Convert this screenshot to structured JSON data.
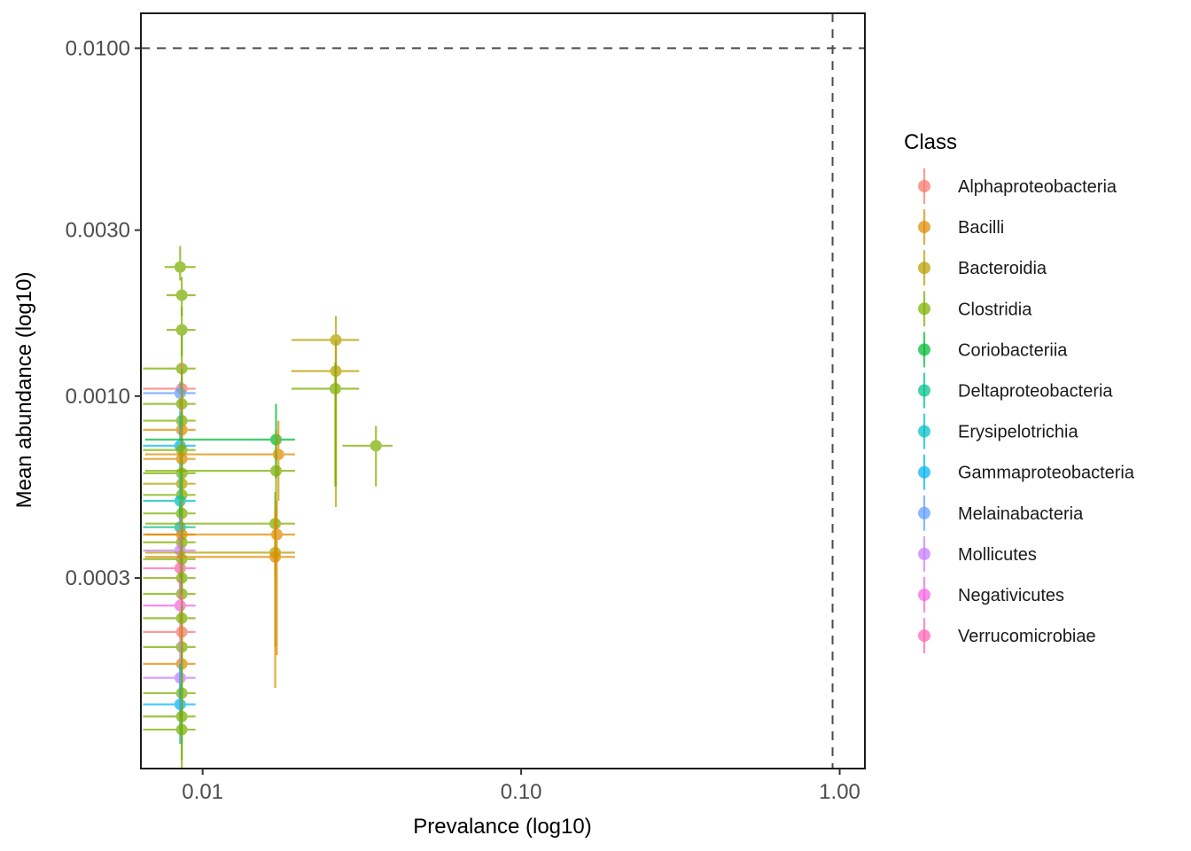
{
  "chart_data": {
    "type": "scatter",
    "xlabel": "Prevalance (log10)",
    "ylabel": "Mean abundance (log10)",
    "x_scale": "log10",
    "y_scale": "log10",
    "xlim": [
      0.0064,
      1.2
    ],
    "ylim": [
      8.5e-05,
      0.0126
    ],
    "x_ticks": [
      0.01,
      0.1,
      1.0
    ],
    "x_tick_labels": [
      "0.01",
      "0.10",
      "1.00"
    ],
    "y_ticks": [
      0.0003,
      0.001,
      0.003,
      0.01
    ],
    "y_tick_labels": [
      "0.0003",
      "0.0010",
      "0.0030",
      "0.0100"
    ],
    "reference_lines": {
      "horizontal_y": 0.01,
      "vertical_x": 0.95,
      "style": "dashed"
    },
    "grid": false,
    "legend": {
      "title": "Class",
      "position": "right",
      "entries": [
        {
          "name": "Alphaproteobacteria",
          "color": "#F8766D"
        },
        {
          "name": "Bacilli",
          "color": "#DE8C00"
        },
        {
          "name": "Bacteroidia",
          "color": "#B79F00"
        },
        {
          "name": "Clostridia",
          "color": "#7CAE00"
        },
        {
          "name": "Coriobacteriia",
          "color": "#00BA38"
        },
        {
          "name": "Deltaproteobacteria",
          "color": "#00C08B"
        },
        {
          "name": "Erysipelotrichia",
          "color": "#00BFC4"
        },
        {
          "name": "Gammaproteobacteria",
          "color": "#00B4F0"
        },
        {
          "name": "Melainabacteria",
          "color": "#619CFF"
        },
        {
          "name": "Mollicutes",
          "color": "#C77CFF"
        },
        {
          "name": "Negativicutes",
          "color": "#F564E3"
        },
        {
          "name": "Verrucomicrobiae",
          "color": "#FF64B0"
        }
      ]
    },
    "points": [
      {
        "class": "Clostridia",
        "x": 0.0085,
        "y": 0.00235,
        "xmin": 0.0076,
        "xmax": 0.0095,
        "ymin": 0.00215,
        "ymax": 0.0027
      },
      {
        "class": "Clostridia",
        "x": 0.0086,
        "y": 0.00195,
        "xmin": 0.0077,
        "xmax": 0.0095,
        "ymin": 0.0017,
        "ymax": 0.0022
      },
      {
        "class": "Clostridia",
        "x": 0.0086,
        "y": 0.00155,
        "xmin": 0.0077,
        "xmax": 0.0095,
        "ymin": 0.0013,
        "ymax": 0.0018
      },
      {
        "class": "Clostridia",
        "x": 0.0086,
        "y": 0.0012,
        "xmin": 0.0065,
        "xmax": 0.0095,
        "ymin": 0.0008,
        "ymax": 0.0015
      },
      {
        "class": "Alphaproteobacteria",
        "x": 0.0086,
        "y": 0.00105,
        "xmin": 0.0065,
        "xmax": 0.0095,
        "ymin": 0.0008,
        "ymax": 0.00125
      },
      {
        "class": "Melainabacteria",
        "x": 0.0085,
        "y": 0.00102,
        "xmin": 0.0065,
        "xmax": 0.0095,
        "ymin": 0.0009,
        "ymax": 0.0011
      },
      {
        "class": "Clostridia",
        "x": 0.0086,
        "y": 0.00095,
        "xmin": 0.0065,
        "xmax": 0.0095,
        "ymin": 0.0007,
        "ymax": 0.0012
      },
      {
        "class": "Clostridia",
        "x": 0.0086,
        "y": 0.00085,
        "xmin": 0.0065,
        "xmax": 0.0095,
        "ymin": 0.0006,
        "ymax": 0.0011
      },
      {
        "class": "Bacilli",
        "x": 0.0086,
        "y": 0.0008,
        "xmin": 0.0065,
        "xmax": 0.0095,
        "ymin": 0.0006,
        "ymax": 0.001
      },
      {
        "class": "Gammaproteobacteria",
        "x": 0.0085,
        "y": 0.00072,
        "xmin": 0.0065,
        "xmax": 0.0095,
        "ymin": 0.0006,
        "ymax": 0.0009
      },
      {
        "class": "Clostridia",
        "x": 0.0086,
        "y": 0.0007,
        "xmin": 0.0065,
        "xmax": 0.0095,
        "ymin": 0.0005,
        "ymax": 0.0009
      },
      {
        "class": "Bacilli",
        "x": 0.0086,
        "y": 0.00066,
        "xmin": 0.0065,
        "xmax": 0.0095,
        "ymin": 0.0005,
        "ymax": 0.0008
      },
      {
        "class": "Clostridia",
        "x": 0.0086,
        "y": 0.0006,
        "xmin": 0.0065,
        "xmax": 0.0095,
        "ymin": 0.00045,
        "ymax": 0.00075
      },
      {
        "class": "Bacteroidia",
        "x": 0.0086,
        "y": 0.00056,
        "xmin": 0.0065,
        "xmax": 0.0095,
        "ymin": 0.0004,
        "ymax": 0.0007
      },
      {
        "class": "Clostridia",
        "x": 0.0086,
        "y": 0.00052,
        "xmin": 0.0065,
        "xmax": 0.0095,
        "ymin": 0.0004,
        "ymax": 0.00065
      },
      {
        "class": "Erysipelotrichia",
        "x": 0.0085,
        "y": 0.0005,
        "xmin": 0.0065,
        "xmax": 0.0095,
        "ymin": 0.0004,
        "ymax": 0.0006
      },
      {
        "class": "Clostridia",
        "x": 0.0086,
        "y": 0.00046,
        "xmin": 0.0065,
        "xmax": 0.0095,
        "ymin": 0.00035,
        "ymax": 0.0006
      },
      {
        "class": "Deltaproteobacteria",
        "x": 0.0085,
        "y": 0.00042,
        "xmin": 0.0065,
        "xmax": 0.0095,
        "ymin": 0.00034,
        "ymax": 0.0005
      },
      {
        "class": "Bacilli",
        "x": 0.0086,
        "y": 0.0004,
        "xmin": 0.0065,
        "xmax": 0.0095,
        "ymin": 0.0003,
        "ymax": 0.0005
      },
      {
        "class": "Clostridia",
        "x": 0.0086,
        "y": 0.00038,
        "xmin": 0.0065,
        "xmax": 0.0095,
        "ymin": 0.0003,
        "ymax": 0.00048
      },
      {
        "class": "Mollicutes",
        "x": 0.0085,
        "y": 0.00036,
        "xmin": 0.0065,
        "xmax": 0.0095,
        "ymin": 0.0003,
        "ymax": 0.00045
      },
      {
        "class": "Clostridia",
        "x": 0.0086,
        "y": 0.00034,
        "xmin": 0.0065,
        "xmax": 0.0095,
        "ymin": 0.00027,
        "ymax": 0.00042
      },
      {
        "class": "Verrucomicrobiae",
        "x": 0.0085,
        "y": 0.00032,
        "xmin": 0.0065,
        "xmax": 0.0095,
        "ymin": 0.00026,
        "ymax": 0.0004
      },
      {
        "class": "Clostridia",
        "x": 0.0086,
        "y": 0.0003,
        "xmin": 0.0065,
        "xmax": 0.0095,
        "ymin": 0.00024,
        "ymax": 0.00038
      },
      {
        "class": "Clostridia",
        "x": 0.0086,
        "y": 0.00027,
        "xmin": 0.0065,
        "xmax": 0.0095,
        "ymin": 0.0002,
        "ymax": 0.00035
      },
      {
        "class": "Negativicutes",
        "x": 0.0085,
        "y": 0.00025,
        "xmin": 0.0065,
        "xmax": 0.0095,
        "ymin": 0.0002,
        "ymax": 0.0003
      },
      {
        "class": "Clostridia",
        "x": 0.0086,
        "y": 0.00023,
        "xmin": 0.0065,
        "xmax": 0.0095,
        "ymin": 0.00017,
        "ymax": 0.0003
      },
      {
        "class": "Alphaproteobacteria",
        "x": 0.0086,
        "y": 0.00021,
        "xmin": 0.0065,
        "xmax": 0.0095,
        "ymin": 0.00016,
        "ymax": 0.00027
      },
      {
        "class": "Clostridia",
        "x": 0.0086,
        "y": 0.00019,
        "xmin": 0.0065,
        "xmax": 0.0095,
        "ymin": 0.00014,
        "ymax": 0.00025
      },
      {
        "class": "Bacilli",
        "x": 0.0086,
        "y": 0.00017,
        "xmin": 0.0065,
        "xmax": 0.0095,
        "ymin": 0.00012,
        "ymax": 0.00022
      },
      {
        "class": "Mollicutes",
        "x": 0.0085,
        "y": 0.000155,
        "xmin": 0.0065,
        "xmax": 0.0095,
        "ymin": 0.00012,
        "ymax": 0.0002
      },
      {
        "class": "Clostridia",
        "x": 0.0086,
        "y": 0.00014,
        "xmin": 0.0065,
        "xmax": 0.0095,
        "ymin": 0.0001,
        "ymax": 0.00019
      },
      {
        "class": "Gammaproteobacteria",
        "x": 0.0085,
        "y": 0.00013,
        "xmin": 0.0065,
        "xmax": 0.0095,
        "ymin": 0.0001,
        "ymax": 0.00017
      },
      {
        "class": "Clostridia",
        "x": 0.0086,
        "y": 0.00012,
        "xmin": 0.0065,
        "xmax": 0.0095,
        "ymin": 9e-05,
        "ymax": 0.00016
      },
      {
        "class": "Clostridia",
        "x": 0.0086,
        "y": 0.00011,
        "xmin": 0.0065,
        "xmax": 0.0095,
        "ymin": 8e-05,
        "ymax": 0.00015
      },
      {
        "class": "Coriobacteriia",
        "x": 0.017,
        "y": 0.00075,
        "xmin": 0.0066,
        "xmax": 0.0195,
        "ymin": 0.00058,
        "ymax": 0.00095
      },
      {
        "class": "Bacilli",
        "x": 0.0173,
        "y": 0.00068,
        "xmin": 0.0066,
        "xmax": 0.0195,
        "ymin": 0.0005,
        "ymax": 0.00085
      },
      {
        "class": "Clostridia",
        "x": 0.017,
        "y": 0.00061,
        "xmin": 0.0066,
        "xmax": 0.0195,
        "ymin": 0.00045,
        "ymax": 0.0008
      },
      {
        "class": "Clostridia",
        "x": 0.0169,
        "y": 0.00043,
        "xmin": 0.0066,
        "xmax": 0.0195,
        "ymin": 0.0003,
        "ymax": 0.00053
      },
      {
        "class": "Bacilli",
        "x": 0.0171,
        "y": 0.0004,
        "xmin": 0.0066,
        "xmax": 0.0195,
        "ymin": 0.00018,
        "ymax": 0.0005
      },
      {
        "class": "Bacteroidia",
        "x": 0.0169,
        "y": 0.000355,
        "xmin": 0.0066,
        "xmax": 0.0195,
        "ymin": 0.00019,
        "ymax": 0.00047
      },
      {
        "class": "Bacilli",
        "x": 0.0169,
        "y": 0.000345,
        "xmin": 0.0066,
        "xmax": 0.0195,
        "ymin": 0.000145,
        "ymax": 0.00045
      },
      {
        "class": "Bacteroidia",
        "x": 0.0262,
        "y": 0.00145,
        "xmin": 0.019,
        "xmax": 0.031,
        "ymin": 0.00055,
        "ymax": 0.0017
      },
      {
        "class": "Bacteroidia",
        "x": 0.0262,
        "y": 0.00118,
        "xmin": 0.019,
        "xmax": 0.031,
        "ymin": 0.00048,
        "ymax": 0.00145
      },
      {
        "class": "Clostridia",
        "x": 0.0261,
        "y": 0.00105,
        "xmin": 0.019,
        "xmax": 0.031,
        "ymin": 0.00055,
        "ymax": 0.00125
      },
      {
        "class": "Clostridia",
        "x": 0.035,
        "y": 0.00072,
        "xmin": 0.0275,
        "xmax": 0.0395,
        "ymin": 0.00055,
        "ymax": 0.00082
      }
    ]
  }
}
